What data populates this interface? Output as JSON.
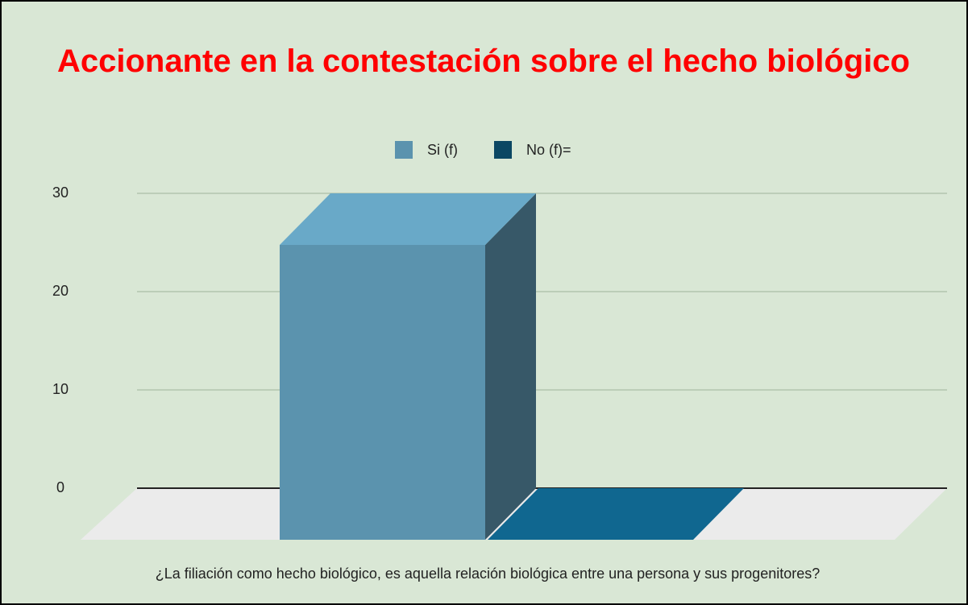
{
  "chart_data": {
    "type": "bar3d",
    "title": "Accionante en la contestación sobre el hecho biológico",
    "categories": [
      "¿La filiación como hecho biológico, es aquella relación biológica entre una persona y sus progenitores?"
    ],
    "series": [
      {
        "name": "Si (f)",
        "color": "#5b93ae",
        "values": [
          30
        ]
      },
      {
        "name": "No (f)=",
        "color": "#0b4763",
        "values": [
          0
        ]
      }
    ],
    "ylim": [
      0,
      30
    ],
    "yticks": [
      0,
      10,
      20,
      30
    ],
    "grid": true,
    "legend": "top"
  }
}
